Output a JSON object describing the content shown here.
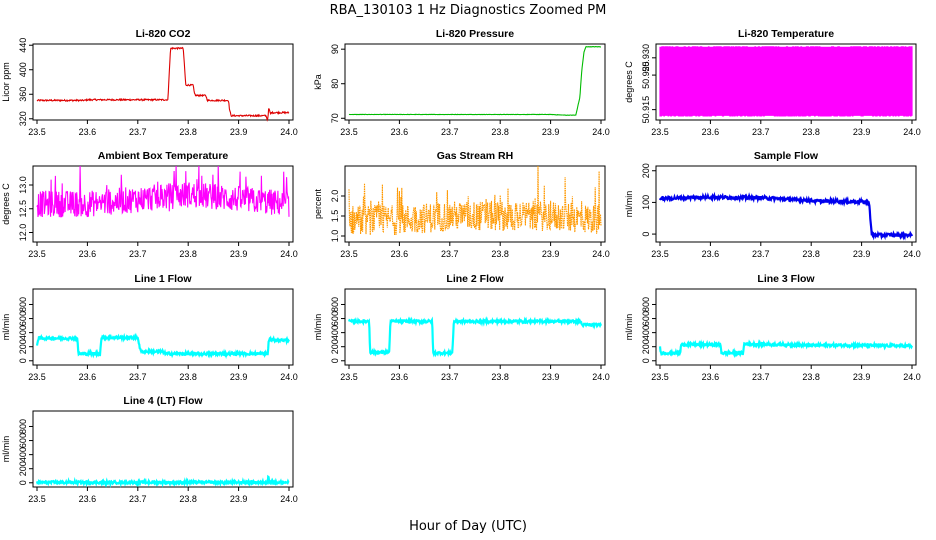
{
  "figure": {
    "title": "RBA_130103  1 Hz Diagnostics Zoomed PM",
    "xlabel": "Hour of Day (UTC)"
  },
  "chart_data": [
    {
      "type": "line",
      "title": "Li-820 CO2",
      "ylabel": "Licor ppm",
      "x_ticks": [
        "23.5",
        "23.6",
        "23.7",
        "23.8",
        "23.9",
        "24.0"
      ],
      "y_ticks": [
        "320",
        "360",
        "400",
        "440"
      ],
      "xlim": [
        23.5,
        24.0
      ],
      "ylim": [
        318,
        442
      ],
      "color": "#dd0000",
      "series": [
        {
          "x": [
            23.5,
            23.595,
            23.6,
            23.75,
            23.76,
            23.762,
            23.765,
            23.79,
            23.792,
            23.795,
            23.81,
            23.812,
            23.815,
            23.835,
            23.838,
            23.84,
            23.88,
            23.882,
            23.885,
            23.955,
            23.957,
            23.96,
            23.963,
            23.965,
            24.0
          ],
          "y": [
            350,
            350,
            351,
            351,
            351,
            390,
            435,
            435,
            415,
            375,
            375,
            362,
            358,
            358,
            350,
            350,
            350,
            335,
            325,
            325,
            315,
            338,
            328,
            330,
            330
          ]
        }
      ]
    },
    {
      "type": "line",
      "title": "Li-820 Pressure",
      "ylabel": "kPa",
      "x_ticks": [
        "23.5",
        "23.6",
        "23.7",
        "23.8",
        "23.9",
        "24.0"
      ],
      "y_ticks": [
        "70",
        "80",
        "90"
      ],
      "xlim": [
        23.5,
        24.0
      ],
      "ylim": [
        69.5,
        91.5
      ],
      "color": "#00bb00",
      "series": [
        {
          "x": [
            23.5,
            23.6,
            23.7,
            23.8,
            23.9,
            23.93,
            23.95,
            23.958,
            23.962,
            23.966,
            23.97,
            24.0
          ],
          "y": [
            71.1,
            71.1,
            71.1,
            71.1,
            71.1,
            70.9,
            70.9,
            76,
            84,
            89,
            90.7,
            90.7
          ]
        }
      ]
    },
    {
      "type": "line",
      "title": "Li-820 Temperature",
      "ylabel": "degrees C",
      "x_ticks": [
        "23.5",
        "23.6",
        "23.7",
        "23.8",
        "23.9",
        "24.0"
      ],
      "y_ticks": [
        "50.915",
        "50.925",
        "50.930"
      ],
      "xlim": [
        23.5,
        24.0
      ],
      "ylim": [
        50.912,
        50.934
      ],
      "color": "#ff00ff",
      "series": [
        {
          "x": [
            23.5,
            24.0
          ],
          "y": [
            50.915,
            50.933
          ]
        }
      ]
    },
    {
      "type": "line",
      "title": "Ambient Box Temperature",
      "ylabel": "degrees C",
      "x_ticks": [
        "23.5",
        "23.6",
        "23.7",
        "23.8",
        "23.9",
        "24.0"
      ],
      "y_ticks": [
        "12.0",
        "12.5",
        "13.0"
      ],
      "xlim": [
        23.5,
        24.0
      ],
      "ylim": [
        11.8,
        13.4
      ],
      "color": "#ff00ff",
      "series": [
        {
          "x": [
            23.5,
            23.6,
            23.7,
            23.8,
            23.9,
            24.0
          ],
          "y": [
            12.6,
            12.6,
            12.7,
            12.8,
            12.7,
            12.6
          ]
        }
      ]
    },
    {
      "type": "line",
      "title": "Gas Stream RH",
      "ylabel": "percent",
      "x_ticks": [
        "23.5",
        "23.6",
        "23.7",
        "23.8",
        "23.9",
        "24.0"
      ],
      "y_ticks": [
        "1.0",
        "1.5",
        "2.0"
      ],
      "xlim": [
        23.5,
        24.0
      ],
      "ylim": [
        0.85,
        2.75
      ],
      "color": "#ff9900",
      "series": [
        {
          "x": [
            23.5,
            23.6,
            23.7,
            23.8,
            23.9,
            24.0
          ],
          "y": [
            1.4,
            1.4,
            1.5,
            1.5,
            1.5,
            1.4
          ]
        }
      ]
    },
    {
      "type": "line",
      "title": "Sample Flow",
      "ylabel": "ml/min",
      "x_ticks": [
        "23.5",
        "23.6",
        "23.7",
        "23.8",
        "23.9",
        "24.0"
      ],
      "y_ticks": [
        "0",
        "100",
        "200"
      ],
      "xlim": [
        23.5,
        24.0
      ],
      "ylim": [
        -25,
        215
      ],
      "color": "#0000ee",
      "series": [
        {
          "x": [
            23.5,
            23.6,
            23.65,
            23.7,
            23.75,
            23.8,
            23.82,
            23.85,
            23.9,
            23.915,
            23.92,
            24.0
          ],
          "y": [
            112,
            117,
            115,
            115,
            110,
            106,
            103,
            104,
            102,
            100,
            -3,
            -3
          ]
        }
      ]
    },
    {
      "type": "line",
      "title": "Line 1 Flow",
      "ylabel": "ml/min",
      "x_ticks": [
        "23.5",
        "23.6",
        "23.7",
        "23.8",
        "23.9",
        "24.0"
      ],
      "y_ticks": [
        "0",
        "200",
        "400",
        "600",
        "800"
      ],
      "xlim": [
        23.5,
        24.0
      ],
      "ylim": [
        -60,
        1020
      ],
      "color": "#00ffff",
      "series": [
        {
          "x": [
            23.5,
            23.503,
            23.58,
            23.582,
            23.625,
            23.628,
            23.7,
            23.705,
            23.708,
            23.75,
            23.755,
            23.958,
            23.96,
            24.0
          ],
          "y": [
            230,
            320,
            320,
            100,
            100,
            330,
            330,
            150,
            130,
            130,
            100,
            100,
            300,
            290
          ]
        }
      ]
    },
    {
      "type": "line",
      "title": "Line 2 Flow",
      "ylabel": "ml/min",
      "x_ticks": [
        "23.5",
        "23.6",
        "23.7",
        "23.8",
        "23.9",
        "24.0"
      ],
      "y_ticks": [
        "0",
        "200",
        "400",
        "600",
        "800"
      ],
      "xlim": [
        23.5,
        24.0
      ],
      "ylim": [
        -60,
        1020
      ],
      "color": "#00ffff",
      "series": [
        {
          "x": [
            23.5,
            23.54,
            23.542,
            23.58,
            23.582,
            23.665,
            23.667,
            23.705,
            23.708,
            23.96,
            23.962,
            24.0
          ],
          "y": [
            560,
            560,
            120,
            120,
            560,
            560,
            110,
            110,
            560,
            560,
            510,
            510
          ]
        }
      ]
    },
    {
      "type": "line",
      "title": "Line 3 Flow",
      "ylabel": "ml/min",
      "x_ticks": [
        "23.5",
        "23.6",
        "23.7",
        "23.8",
        "23.9",
        "24.0"
      ],
      "y_ticks": [
        "0",
        "200",
        "400",
        "600",
        "800"
      ],
      "xlim": [
        23.5,
        24.0
      ],
      "ylim": [
        -60,
        1020
      ],
      "color": "#00ffff",
      "series": [
        {
          "x": [
            23.5,
            23.502,
            23.54,
            23.542,
            23.62,
            23.622,
            23.665,
            23.667,
            23.8,
            23.9,
            24.0
          ],
          "y": [
            190,
            110,
            110,
            230,
            230,
            110,
            110,
            240,
            220,
            220,
            210
          ]
        }
      ]
    },
    {
      "type": "line",
      "title": "Line 4 (LT) Flow",
      "ylabel": "ml/min",
      "x_ticks": [
        "23.5",
        "23.6",
        "23.7",
        "23.8",
        "23.9",
        "24.0"
      ],
      "y_ticks": [
        "0",
        "200",
        "400",
        "600",
        "800"
      ],
      "xlim": [
        23.5,
        24.0
      ],
      "ylim": [
        -60,
        1020
      ],
      "color": "#00ffff",
      "series": [
        {
          "x": [
            23.5,
            23.958,
            23.959,
            23.96,
            23.961,
            24.0
          ],
          "y": [
            5,
            5,
            150,
            60,
            5,
            5
          ]
        }
      ]
    }
  ]
}
